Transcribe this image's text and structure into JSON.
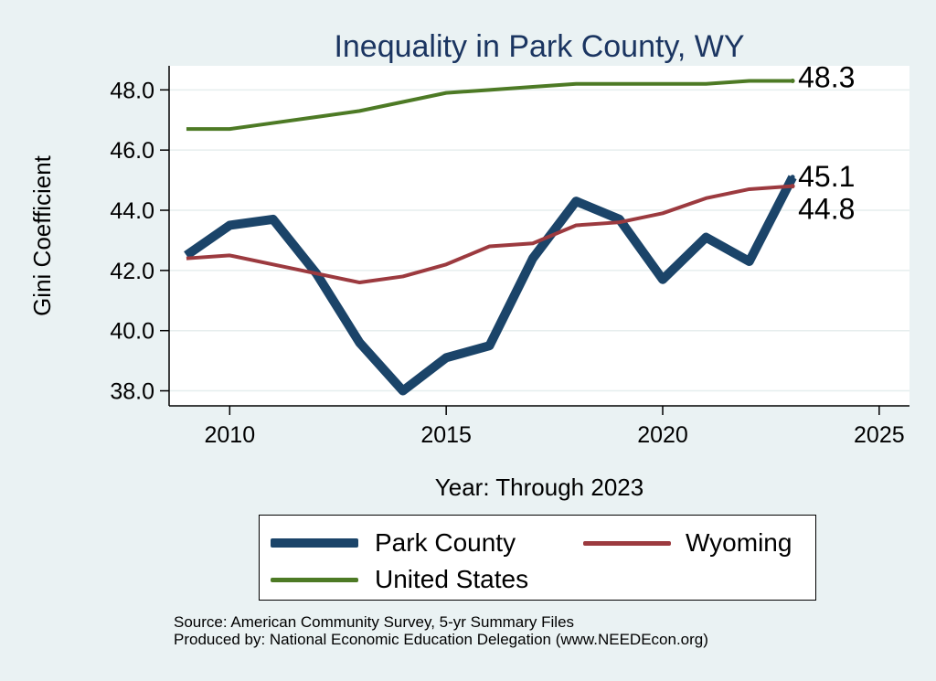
{
  "chart_data": {
    "type": "line",
    "title": "Inequality in Park County, WY",
    "xlabel": "Year: Through 2023",
    "ylabel": "Gini Coefficient",
    "xlim": [
      2008.6,
      2025.7
    ],
    "ylim": [
      37.5,
      48.8
    ],
    "xticks": [
      2010,
      2015,
      2020,
      2025
    ],
    "yticks": [
      38,
      40,
      42,
      44,
      46,
      48
    ],
    "ytick_labels": [
      "38.0",
      "40.0",
      "42.0",
      "44.0",
      "46.0",
      "48.0"
    ],
    "grid": true,
    "x": [
      2009,
      2010,
      2011,
      2012,
      2013,
      2014,
      2015,
      2016,
      2017,
      2018,
      2019,
      2020,
      2021,
      2022,
      2023
    ],
    "series": [
      {
        "name": "Park County",
        "color": "#1b4469",
        "width": 10,
        "values": [
          42.5,
          43.5,
          43.7,
          41.9,
          39.6,
          38.0,
          39.1,
          39.5,
          42.4,
          44.3,
          43.7,
          41.7,
          43.1,
          42.3,
          45.1
        ],
        "end_label": "45.1"
      },
      {
        "name": "Wyoming",
        "color": "#9c3a3f",
        "width": 4,
        "values": [
          42.4,
          42.5,
          42.2,
          41.9,
          41.6,
          41.8,
          42.2,
          42.8,
          42.9,
          43.5,
          43.6,
          43.9,
          44.4,
          44.7,
          44.8
        ],
        "end_label": "44.8"
      },
      {
        "name": "United States",
        "color": "#4d7a25",
        "width": 4,
        "values": [
          46.7,
          46.7,
          46.9,
          47.1,
          47.3,
          47.6,
          47.9,
          48.0,
          48.1,
          48.2,
          48.2,
          48.2,
          48.2,
          48.3,
          48.3
        ],
        "end_label": "48.3"
      }
    ],
    "legend": [
      "Park County",
      "Wyoming",
      "United States"
    ],
    "source_line_1": "Source: American Community Survey, 5-yr Summary Files",
    "source_line_2": "Produced by: National Economic Education Delegation (www.NEEDEcon.org)"
  }
}
